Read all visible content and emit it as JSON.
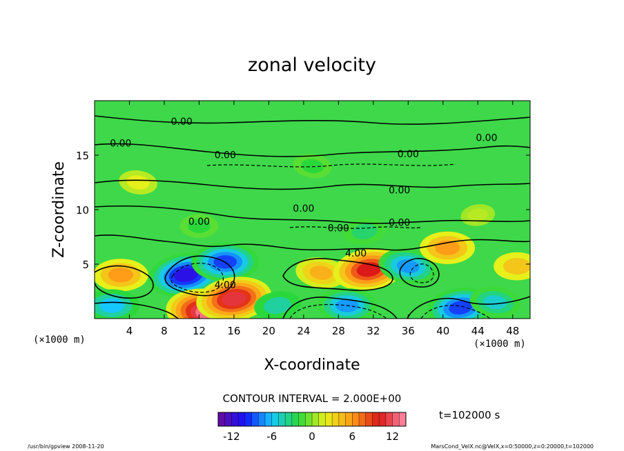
{
  "chart_data": {
    "type": "heatmap",
    "title": "zonal velocity",
    "xlabel": "X-coordinate",
    "ylabel": "Z-coordinate",
    "x_unit": "(×1000 m)",
    "y_unit": "(×1000 m)",
    "xlim": [
      0,
      50
    ],
    "ylim": [
      0,
      20
    ],
    "x_ticks": [
      "4",
      "8",
      "12",
      "16",
      "20",
      "24",
      "28",
      "32",
      "36",
      "40",
      "44",
      "48"
    ],
    "y_ticks": [
      "5",
      "10",
      "15"
    ],
    "contour_interval_text": "CONTOUR INTERVAL = 2.000E+00",
    "contour_labels": [
      "0.00",
      "0.00",
      "0.00",
      "0.00",
      "0.00",
      "0.00",
      "0.00",
      "0.00",
      "0.00",
      "0.00",
      "4.00",
      "4.00"
    ],
    "colorbar": {
      "min": -14,
      "max": 14,
      "ticks": [
        "-12",
        "-6",
        "0",
        "6",
        "12"
      ],
      "colors": [
        "#6a0a9a",
        "#1414ff",
        "#15c8ff",
        "#2bd83c",
        "#e6f01a",
        "#ff9c18",
        "#dc1818",
        "#ff8ca8"
      ]
    },
    "time_label": "t=102000 s",
    "features": [
      {
        "x": 10.5,
        "z": 4.0,
        "value": -11
      },
      {
        "x": 15.0,
        "z": 5.2,
        "value": -9
      },
      {
        "x": 13.0,
        "z": 0.5,
        "value": 13
      },
      {
        "x": 16.0,
        "z": 1.8,
        "value": 11
      },
      {
        "x": 3.0,
        "z": 4.0,
        "value": 6
      },
      {
        "x": 26.0,
        "z": 4.2,
        "value": 5
      },
      {
        "x": 31.5,
        "z": 4.5,
        "value": 10
      },
      {
        "x": 29.0,
        "z": 1.2,
        "value": -7
      },
      {
        "x": 36.0,
        "z": 4.8,
        "value": -7
      },
      {
        "x": 42.0,
        "z": 1.0,
        "value": -9
      },
      {
        "x": 40.5,
        "z": 6.5,
        "value": 6
      },
      {
        "x": 46.0,
        "z": 1.5,
        "value": -5
      },
      {
        "x": 21.0,
        "z": 1.2,
        "value": -4
      },
      {
        "x": 2.0,
        "z": 1.2,
        "value": -6
      },
      {
        "x": 25.0,
        "z": 14.0,
        "value": -2
      },
      {
        "x": 31.0,
        "z": 8.0,
        "value": -3
      },
      {
        "x": 12.0,
        "z": 8.5,
        "value": -2
      },
      {
        "x": 5.0,
        "z": 12.5,
        "value": 2
      },
      {
        "x": 44.0,
        "z": 9.5,
        "value": 1
      },
      {
        "x": 48.5,
        "z": 4.8,
        "value": 4
      }
    ]
  },
  "footer": {
    "left": "/usr/bin/gpview  2008-11-20",
    "right": "MarsCond_VelX.nc@VelX,x=0:50000,z=0:20000,t=102000"
  }
}
